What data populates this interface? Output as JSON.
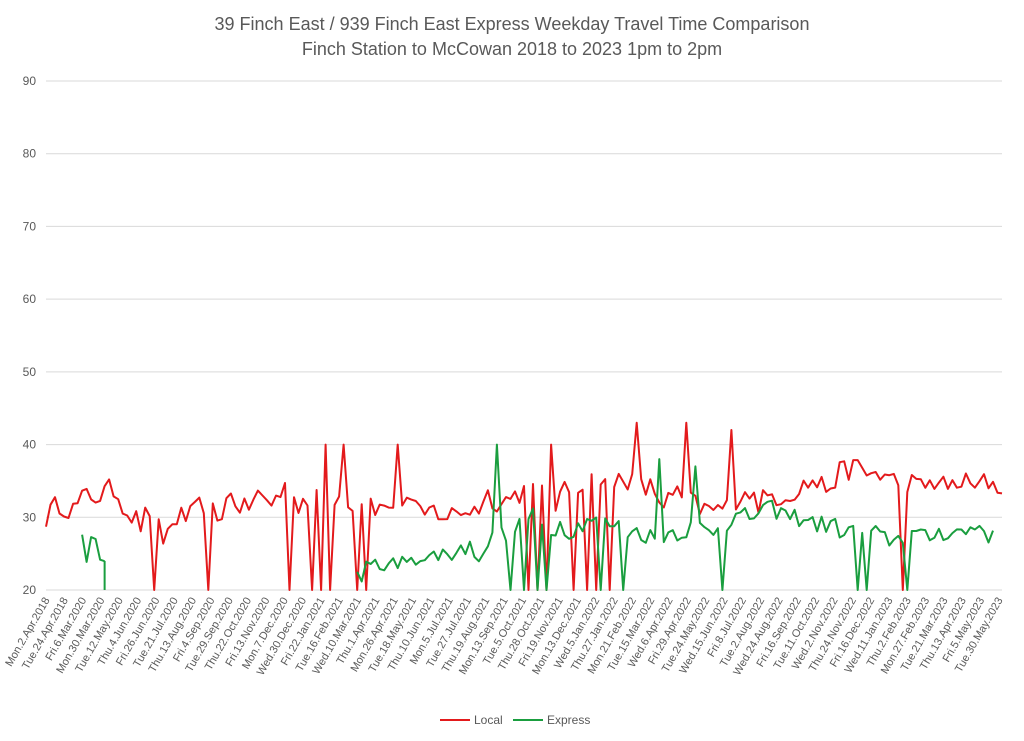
{
  "chart_data": {
    "type": "line",
    "title_lines": [
      "39 Finch East / 939 Finch East Express Weekday Travel Time Comparison",
      "Finch Station to McCowan 2018 to 2023 1pm to 2pm"
    ],
    "xlabel": "",
    "ylabel": "",
    "ylim": [
      20,
      90
    ],
    "yticks": [
      "20",
      "30",
      "40",
      "50",
      "60",
      "70",
      "80",
      "90"
    ],
    "grid": true,
    "legend_position": "bottom",
    "x_tick_labels": [
      "Mon.2.Apr.2018",
      "Tue.24.Apr.2018",
      "Fri.6.Mar.2020",
      "Mon.30.Mar.2020",
      "Tue.12.May.2020",
      "Thu.4.Jun.2020",
      "Fri.26.Jun.2020",
      "Tue.21.Jul.2020",
      "Thu.13.Aug.2020",
      "Fri.4.Sep.2020",
      "Tue.29.Sep.2020",
      "Thu.22.Oct.2020",
      "Fri.13.Nov.2020",
      "Mon.7.Dec.2020",
      "Wed.30.Dec.2020",
      "Fri.22.Jan.2021",
      "Tue.16.Feb.2021",
      "Wed.10.Mar.2021",
      "Thu.1.Apr.2021",
      "Mon.26.Apr.2021",
      "Tue.18.May.2021",
      "Thu.10.Jun.2021",
      "Mon.5.Jul.2021",
      "Tue.27.Jul.2021",
      "Thu.19.Aug.2021",
      "Mon.13.Sep.2021",
      "Tue.5.Oct.2021",
      "Thu.28.Oct.2021",
      "Fri.19.Nov.2021",
      "Mon.13.Dec.2021",
      "Wed.5.Jan.2022",
      "Thu.27.Jan.2022",
      "Mon.21.Feb.2022",
      "Tue.15.Mar.2022",
      "Wed.6.Apr.2022",
      "Fri.29.Apr.2022",
      "Tue.24.May.2022",
      "Wed.15.Jun.2022",
      "Fri.8.Jul.2022",
      "Tue.2.Aug.2022",
      "Wed.24.Aug.2022",
      "Fri.16.Sep.2022",
      "Tue.11.Oct.2022",
      "Wed.2.Nov.2022",
      "Thu.24.Nov.2022",
      "Fri.16.Dec.2022",
      "Wed.11.Jan.2023",
      "Thu.2.Feb.2023",
      "Mon.27.Feb.2023",
      "Tue.21.Mar.2023",
      "Thu.13.Apr.2023",
      "Fri.5.May.2023",
      "Tue.30.May.2023"
    ],
    "series": [
      {
        "name": "Local",
        "color": "#e31a1c",
        "anchors": [
          [
            0,
            30
          ],
          [
            3,
            32
          ],
          [
            6,
            31
          ],
          [
            9,
            33
          ],
          [
            12,
            33
          ],
          [
            15,
            34
          ],
          [
            18,
            31
          ],
          [
            21,
            29
          ],
          [
            23,
            31
          ],
          [
            26,
            27
          ],
          [
            29,
            30
          ],
          [
            32,
            30
          ],
          [
            35,
            32
          ],
          [
            38,
            30
          ],
          [
            41,
            33
          ],
          [
            44,
            31
          ],
          [
            47,
            33
          ],
          [
            50,
            32
          ],
          [
            53,
            34
          ],
          [
            56,
            32
          ],
          [
            59,
            33
          ],
          [
            62,
            31
          ],
          [
            65,
            34
          ],
          [
            68,
            32
          ],
          [
            71,
            33
          ],
          [
            74,
            31
          ],
          [
            77,
            32
          ],
          [
            80,
            33
          ],
          [
            83,
            30
          ],
          [
            86,
            31
          ],
          [
            89,
            30
          ],
          [
            92,
            31
          ],
          [
            95,
            31
          ],
          [
            98,
            33
          ],
          [
            101,
            32
          ],
          [
            104,
            33
          ],
          [
            107,
            34
          ],
          [
            110,
            33
          ],
          [
            113,
            32
          ],
          [
            116,
            34
          ],
          [
            119,
            35
          ],
          [
            122,
            35
          ],
          [
            125,
            34
          ],
          [
            128,
            36
          ],
          [
            131,
            34
          ],
          [
            134,
            34
          ],
          [
            137,
            32
          ],
          [
            140,
            33
          ],
          [
            143,
            32
          ],
          [
            146,
            31
          ],
          [
            149,
            31
          ],
          [
            152,
            32
          ],
          [
            155,
            34
          ],
          [
            158,
            32
          ],
          [
            161,
            33
          ],
          [
            164,
            33
          ],
          [
            167,
            34
          ],
          [
            170,
            35
          ],
          [
            173,
            34
          ],
          [
            176,
            36
          ],
          [
            179,
            37
          ],
          [
            182,
            36
          ],
          [
            185,
            36
          ],
          [
            188,
            35
          ],
          [
            191,
            35
          ],
          [
            194,
            34
          ],
          [
            197,
            35
          ],
          [
            200,
            34
          ],
          [
            203,
            35
          ],
          [
            206,
            34
          ],
          [
            209,
            35
          ],
          [
            212,
            34
          ]
        ],
        "spikes": [
          [
            62,
            40
          ],
          [
            66,
            40
          ],
          [
            78,
            40
          ],
          [
            112,
            40
          ],
          [
            131,
            43
          ],
          [
            142,
            43
          ],
          [
            152,
            42
          ]
        ],
        "dropouts": [
          24,
          36,
          54,
          59,
          61,
          63,
          69,
          71,
          107,
          109,
          111,
          117,
          120,
          122,
          125,
          190
        ]
      },
      {
        "name": "Express",
        "color": "#1a9e3f",
        "segments": [
          [
            [
              8,
              27
            ],
            [
              9,
              25
            ],
            [
              10,
              27
            ],
            [
              11,
              26
            ],
            [
              12,
              25
            ],
            [
              13,
              24
            ]
          ],
          [
            [
              69,
              22
            ],
            [
              72,
              23
            ],
            [
              75,
              24
            ],
            [
              78,
              23
            ],
            [
              81,
              25
            ],
            [
              84,
              24
            ],
            [
              87,
              25
            ],
            [
              90,
              25
            ],
            [
              93,
              26
            ],
            [
              96,
              25
            ],
            [
              99,
              27
            ],
            [
              102,
              28
            ],
            [
              105,
              29
            ],
            [
              108,
              30
            ],
            [
              111,
              28
            ],
            [
              114,
              29
            ],
            [
              117,
              28
            ],
            [
              120,
              30
            ],
            [
              123,
              29
            ],
            [
              126,
              29
            ],
            [
              129,
              28
            ],
            [
              132,
              28
            ],
            [
              135,
              27
            ],
            [
              138,
              28
            ],
            [
              141,
              28
            ],
            [
              144,
              29
            ],
            [
              147,
              28
            ],
            [
              150,
              29
            ],
            [
              153,
              30
            ],
            [
              156,
              30
            ],
            [
              159,
              31
            ],
            [
              162,
              31
            ],
            [
              165,
              30
            ],
            [
              168,
              30
            ],
            [
              171,
              29
            ],
            [
              174,
              29
            ],
            [
              177,
              28
            ],
            [
              180,
              28
            ],
            [
              183,
              28
            ],
            [
              186,
              27
            ],
            [
              189,
              27
            ],
            [
              192,
              28
            ],
            [
              195,
              27
            ],
            [
              198,
              28
            ],
            [
              201,
              28
            ],
            [
              204,
              28
            ],
            [
              207,
              29
            ],
            [
              210,
              27
            ]
          ]
        ],
        "spikes": [
          [
            100,
            40
          ],
          [
            136,
            38
          ],
          [
            144,
            37
          ]
        ],
        "dropouts": [
          103,
          106,
          109,
          111,
          123,
          128,
          150,
          180,
          182,
          191
        ]
      }
    ]
  }
}
